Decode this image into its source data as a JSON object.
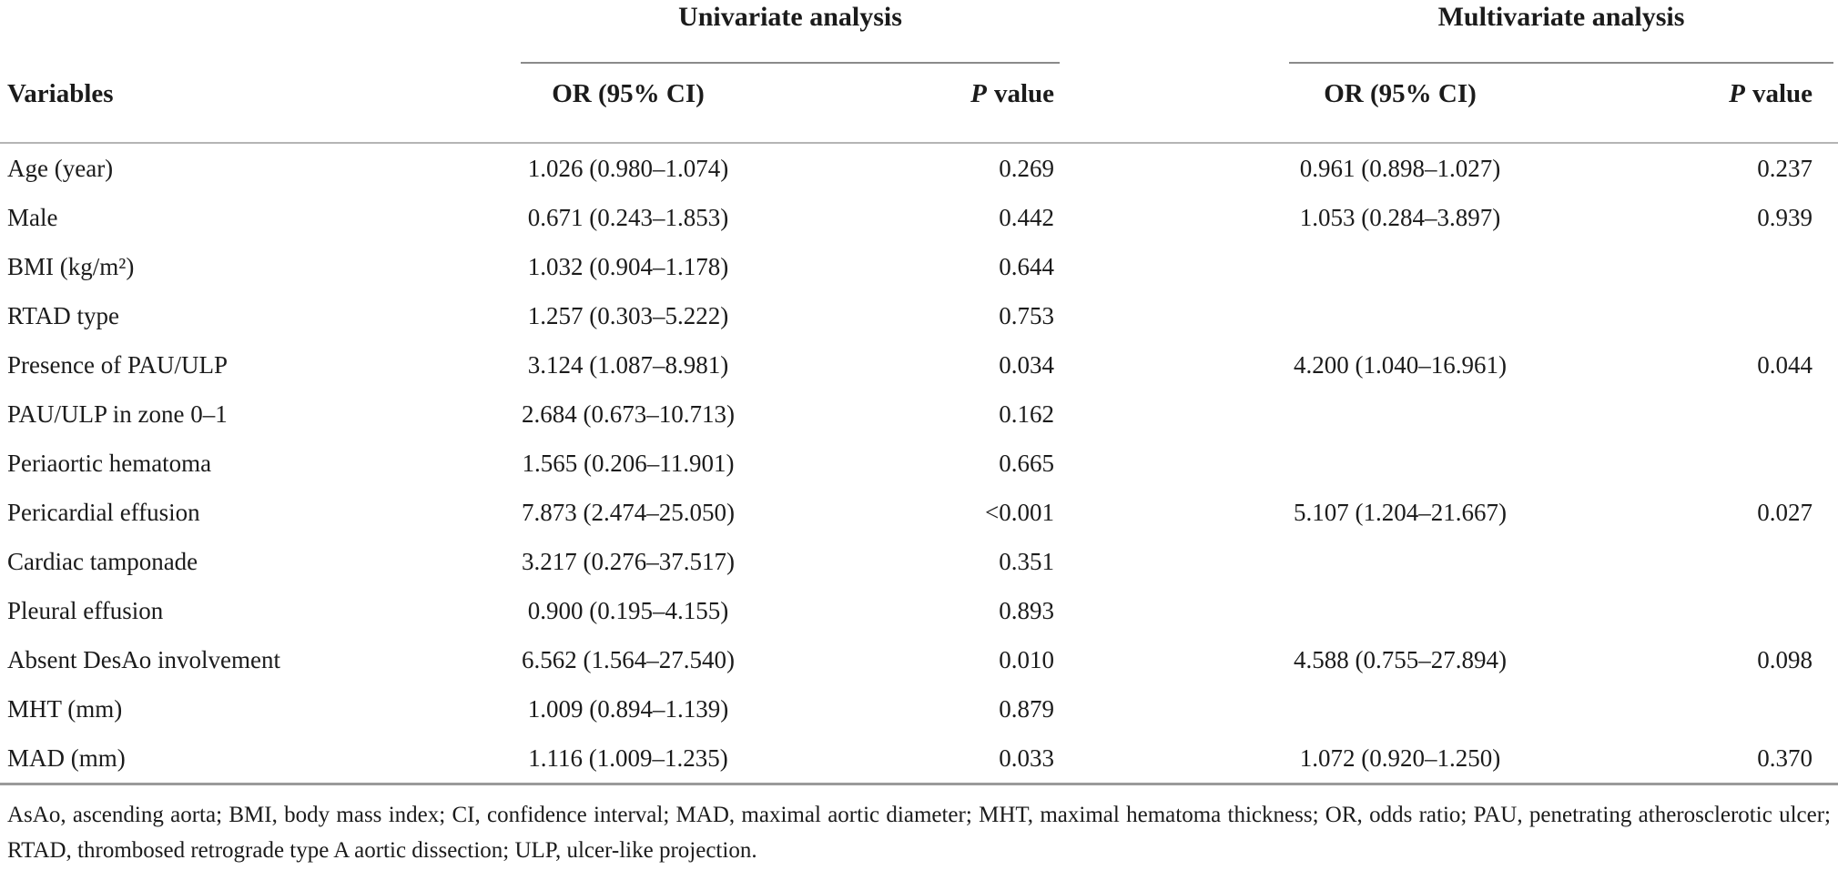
{
  "table": {
    "spanners": [
      {
        "label": "Univariate analysis"
      },
      {
        "label": "Multivariate analysis"
      }
    ],
    "columns": {
      "variables": "Variables",
      "or_ci": "OR (95% CI)",
      "p_italic": "P",
      "p_rest": "value"
    },
    "rows": [
      {
        "variable": "Age (year)",
        "uni_or": "1.026 (0.980–1.074)",
        "uni_p": "0.269",
        "multi_or": "0.961 (0.898–1.027)",
        "multi_p": "0.237"
      },
      {
        "variable": "Male",
        "uni_or": "0.671 (0.243–1.853)",
        "uni_p": "0.442",
        "multi_or": "1.053 (0.284–3.897)",
        "multi_p": "0.939"
      },
      {
        "variable": "BMI (kg/m²)",
        "uni_or": "1.032 (0.904–1.178)",
        "uni_p": "0.644",
        "multi_or": "",
        "multi_p": ""
      },
      {
        "variable": "RTAD type",
        "uni_or": "1.257 (0.303–5.222)",
        "uni_p": "0.753",
        "multi_or": "",
        "multi_p": ""
      },
      {
        "variable": "Presence of PAU/ULP",
        "uni_or": "3.124 (1.087–8.981)",
        "uni_p": "0.034",
        "multi_or": "4.200 (1.040–16.961)",
        "multi_p": "0.044"
      },
      {
        "variable": "PAU/ULP in zone 0–1",
        "uni_or": "2.684 (0.673–10.713)",
        "uni_p": "0.162",
        "multi_or": "",
        "multi_p": ""
      },
      {
        "variable": "Periaortic hematoma",
        "uni_or": "1.565 (0.206–11.901)",
        "uni_p": "0.665",
        "multi_or": "",
        "multi_p": ""
      },
      {
        "variable": "Pericardial effusion",
        "uni_or": "7.873 (2.474–25.050)",
        "uni_p": "<0.001",
        "multi_or": "5.107 (1.204–21.667)",
        "multi_p": "0.027"
      },
      {
        "variable": "Cardiac tamponade",
        "uni_or": "3.217 (0.276–37.517)",
        "uni_p": "0.351",
        "multi_or": "",
        "multi_p": ""
      },
      {
        "variable": "Pleural effusion",
        "uni_or": "0.900 (0.195–4.155)",
        "uni_p": "0.893",
        "multi_or": "",
        "multi_p": ""
      },
      {
        "variable": "Absent DesAo involvement",
        "uni_or": "6.562 (1.564–27.540)",
        "uni_p": "0.010",
        "multi_or": "4.588 (0.755–27.894)",
        "multi_p": "0.098"
      },
      {
        "variable": "MHT (mm)",
        "uni_or": "1.009 (0.894–1.139)",
        "uni_p": "0.879",
        "multi_or": "",
        "multi_p": ""
      },
      {
        "variable": "MAD (mm)",
        "uni_or": "1.116 (1.009–1.235)",
        "uni_p": "0.033",
        "multi_or": "1.072 (0.920–1.250)",
        "multi_p": "0.370"
      }
    ],
    "footnote": "AsAo, ascending aorta; BMI, body mass index; CI, confidence interval; MAD, maximal aortic diameter; MHT, maximal hematoma thickness; OR, odds ratio; PAU, penetrating atherosclerotic ulcer; RTAD, thrombosed retrograde type A aortic dissection; ULP, ulcer-like projection."
  }
}
